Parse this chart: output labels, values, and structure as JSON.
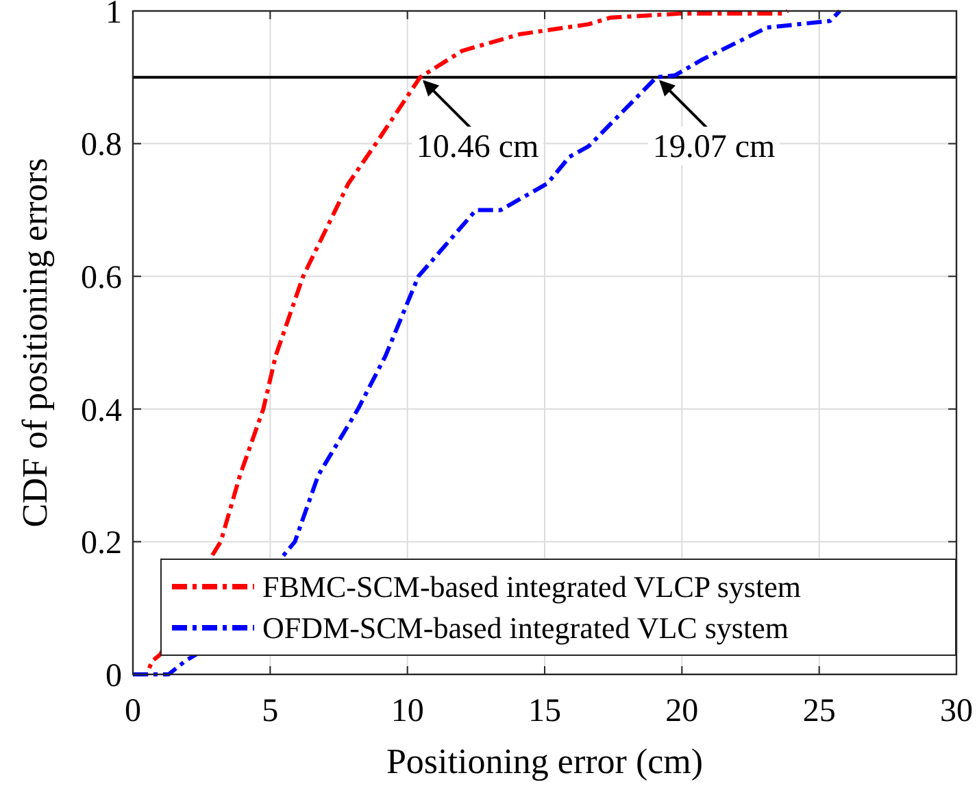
{
  "chart_data": {
    "type": "line",
    "xlabel": "Positioning error (cm)",
    "ylabel": "CDF of positioning errors",
    "xlim": [
      0,
      30
    ],
    "ylim": [
      0,
      1
    ],
    "xticks": [
      0,
      5,
      10,
      15,
      20,
      25,
      30
    ],
    "yticks": [
      0,
      0.2,
      0.4,
      0.6,
      0.8,
      1
    ],
    "grid": true,
    "legend": "bottom",
    "line_style": "dashed",
    "series": [
      {
        "name": "FBMC-SCM-based integrated VLCP system",
        "color": "#ff0000",
        "x": [
          0,
          0.5,
          0.7,
          1.0,
          2.9,
          3.2,
          3.9,
          4.75,
          5.2,
          6.2,
          7.85,
          8.85,
          10.46,
          12,
          14.1,
          16.6,
          17.4,
          19.9,
          23.7,
          23.85
        ],
        "values": [
          0,
          0,
          0.02,
          0.03,
          0.18,
          0.2,
          0.3,
          0.4,
          0.48,
          0.6,
          0.74,
          0.8,
          0.9,
          0.94,
          0.965,
          0.98,
          0.99,
          0.996,
          0.996,
          1
        ]
      },
      {
        "name": "OFDM-SCM-based integrated VLC system",
        "color": "#0000ff",
        "x": [
          0,
          1.3,
          1.9,
          2.3,
          5.5,
          5.9,
          6.75,
          8.2,
          9.2,
          10.4,
          12.5,
          13.4,
          15.1,
          15.9,
          16.6,
          19.07,
          19.75,
          20.75,
          23.1,
          25.4,
          25.75
        ],
        "values": [
          0,
          0,
          0.02,
          0.03,
          0.18,
          0.2,
          0.3,
          0.4,
          0.48,
          0.6,
          0.7,
          0.7,
          0.74,
          0.78,
          0.796,
          0.9,
          0.903,
          0.927,
          0.975,
          0.985,
          1
        ]
      }
    ],
    "ref_lines": [
      {
        "axis": "y",
        "value": 0.9,
        "color": "#000000"
      }
    ],
    "annotations": [
      {
        "text": "10.46 cm",
        "x": 10.46,
        "y": 0.9
      },
      {
        "text": "19.07 cm",
        "x": 19.07,
        "y": 0.9
      }
    ]
  }
}
